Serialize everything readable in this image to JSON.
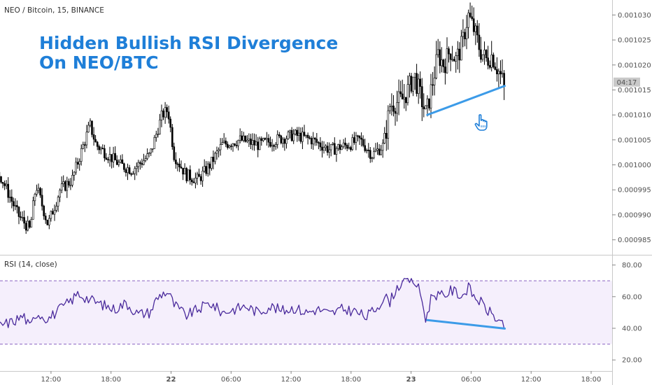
{
  "header": {
    "symbol": "NEO / Bitcoin, 15, BINANCE",
    "annotation_line1": "Hidden Bullish RSI Divergence",
    "annotation_line2": "On NEO/BTC",
    "countdown": "04:17"
  },
  "colors": {
    "candle": "#000000",
    "divergence_line": "#3c9be8",
    "title": "#1f7fd8",
    "rsi_line": "#4a2a9c",
    "rsi_band": "#f5effc",
    "rsi_dashed": "#8a64c2",
    "cursor_icon": "#1f7fd8",
    "price_tag_bg": "#c9c9c9"
  },
  "icons": {
    "cursor": "hand-pointer-icon"
  },
  "chart_data": [
    {
      "type": "candlestick",
      "xlabel": "",
      "ylabel": "",
      "yticks": [
        "0.001030",
        "0.001025",
        "0.001020",
        "0.001015",
        "0.001010",
        "0.001005",
        "0.001000",
        "0.000995",
        "0.000990",
        "0.000985"
      ],
      "ylim": [
        0.000982,
        0.001033
      ],
      "xlim": [
        0,
        102
      ],
      "xticks": [
        {
          "x": 8.5,
          "label": "12:00"
        },
        {
          "x": 18.5,
          "label": "18:00"
        },
        {
          "x": 28.5,
          "label": "22"
        },
        {
          "x": 38.5,
          "label": "06:00"
        },
        {
          "x": 48.5,
          "label": "12:00"
        },
        {
          "x": 58.5,
          "label": "18:00"
        },
        {
          "x": 68.5,
          "label": "23"
        },
        {
          "x": 78.5,
          "label": "06:00"
        },
        {
          "x": 88.5,
          "label": "12:00"
        },
        {
          "x": 98.5,
          "label": "18:00"
        }
      ],
      "anchors": [
        [
          0,
          0.000998
        ],
        [
          3,
          0.00099
        ],
        [
          5,
          0.000987
        ],
        [
          6,
          0.000996
        ],
        [
          8,
          0.000988
        ],
        [
          10,
          0.000995
        ],
        [
          12,
          0.000997
        ],
        [
          15,
          0.001008
        ],
        [
          16,
          0.001004
        ],
        [
          18,
          0.001002
        ],
        [
          20,
          0.001
        ],
        [
          22,
          0.000999
        ],
        [
          25,
          0.001002
        ],
        [
          27,
          0.00101
        ],
        [
          28,
          0.001011
        ],
        [
          29,
          0.001002
        ],
        [
          31,
          0.000998
        ],
        [
          33,
          0.000997
        ],
        [
          35,
          0.001
        ],
        [
          37,
          0.001004
        ],
        [
          40,
          0.001005
        ],
        [
          43,
          0.001004
        ],
        [
          46,
          0.001005
        ],
        [
          49,
          0.001006
        ],
        [
          52,
          0.001005
        ],
        [
          55,
          0.001003
        ],
        [
          58,
          0.001004
        ],
        [
          60,
          0.001005
        ],
        [
          62,
          0.001002
        ],
        [
          64,
          0.001004
        ],
        [
          65,
          0.001012
        ],
        [
          67,
          0.001013
        ],
        [
          68,
          0.001015
        ],
        [
          69,
          0.001018
        ],
        [
          70,
          0.001014
        ],
        [
          71,
          0.00101
        ],
        [
          72,
          0.001016
        ],
        [
          73,
          0.001022
        ],
        [
          74,
          0.00102
        ],
        [
          75,
          0.001023
        ],
        [
          76,
          0.001021
        ],
        [
          77,
          0.001024
        ],
        [
          78,
          0.00103
        ],
        [
          79,
          0.001027
        ],
        [
          80,
          0.001023
        ],
        [
          81,
          0.001021
        ],
        [
          82,
          0.001022
        ],
        [
          83,
          0.001019
        ],
        [
          84,
          0.001016
        ]
      ],
      "current_price": 0.0010158,
      "divergence_line": {
        "from": [
          71.2,
          0.00101
        ],
        "to": [
          84.1,
          0.0010158
        ]
      }
    },
    {
      "type": "line",
      "title": "RSI (14, close)",
      "series": [
        {
          "name": "",
          "values": []
        }
      ],
      "yticks": [
        "80.00",
        "60.00",
        "40.00",
        "20.00"
      ],
      "ylim": [
        13,
        86
      ],
      "xlim": [
        0,
        102
      ],
      "bands": {
        "upper": 70,
        "lower": 30
      },
      "anchors": [
        [
          0,
          42
        ],
        [
          2,
          44
        ],
        [
          4,
          48
        ],
        [
          5,
          40
        ],
        [
          6,
          50
        ],
        [
          8,
          46
        ],
        [
          10,
          52
        ],
        [
          12,
          58
        ],
        [
          13,
          62
        ],
        [
          15,
          58
        ],
        [
          17,
          55
        ],
        [
          19,
          52
        ],
        [
          21,
          56
        ],
        [
          23,
          49
        ],
        [
          25,
          50
        ],
        [
          26,
          58
        ],
        [
          27,
          62
        ],
        [
          28,
          63
        ],
        [
          29,
          55
        ],
        [
          31,
          48
        ],
        [
          33,
          52
        ],
        [
          35,
          56
        ],
        [
          37,
          50
        ],
        [
          39,
          52
        ],
        [
          41,
          54
        ],
        [
          43,
          50
        ],
        [
          45,
          54
        ],
        [
          47,
          51
        ],
        [
          49,
          53
        ],
        [
          51,
          50
        ],
        [
          53,
          52
        ],
        [
          55,
          49
        ],
        [
          57,
          52
        ],
        [
          59,
          51
        ],
        [
          61,
          47
        ],
        [
          63,
          54
        ],
        [
          64,
          60
        ],
        [
          65,
          57
        ],
        [
          66,
          65
        ],
        [
          67,
          69
        ],
        [
          68,
          71
        ],
        [
          69,
          70
        ],
        [
          70,
          63
        ],
        [
          71,
          45
        ],
        [
          72,
          62
        ],
        [
          74,
          60
        ],
        [
          75,
          64
        ],
        [
          76,
          63
        ],
        [
          77,
          60
        ],
        [
          78,
          66
        ],
        [
          79,
          60
        ],
        [
          80,
          57
        ],
        [
          81,
          52
        ],
        [
          82,
          49
        ],
        [
          83,
          45
        ],
        [
          84,
          40
        ]
      ],
      "divergence_line": {
        "from": [
          71.2,
          45.2
        ],
        "to": [
          84.1,
          39.8
        ]
      }
    }
  ]
}
